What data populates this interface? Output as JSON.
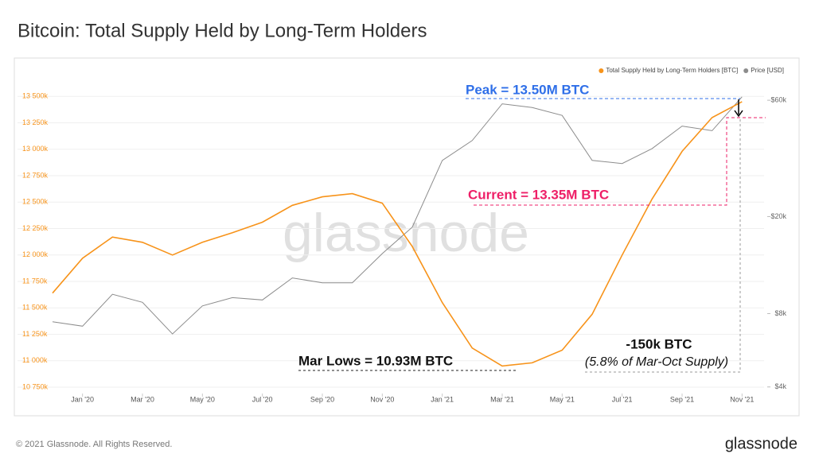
{
  "chart_data": {
    "type": "line",
    "title": "Bitcoin: Total Supply Held by Long-Term Holders",
    "footer": "© 2021 Glassnode. All Rights Reserved.",
    "brand": "glassnode",
    "watermark": "glassnode",
    "x": [
      "2019-12",
      "2020-01",
      "2020-02",
      "2020-03",
      "2020-04",
      "2020-05",
      "2020-06",
      "2020-07",
      "2020-08",
      "2020-09",
      "2020-10",
      "2020-11",
      "2020-12",
      "2021-01",
      "2021-02",
      "2021-03",
      "2021-04",
      "2021-05",
      "2021-06",
      "2021-07",
      "2021-08",
      "2021-09",
      "2021-10",
      "2021-11"
    ],
    "xlim": [
      "2019-12",
      "2021-12"
    ],
    "xticks": [
      {
        "value": "2020-01",
        "label": "Jan '20"
      },
      {
        "value": "2020-03",
        "label": "Mar '20"
      },
      {
        "value": "2020-05",
        "label": "May '20"
      },
      {
        "value": "2020-07",
        "label": "Jul '20"
      },
      {
        "value": "2020-09",
        "label": "Sep '20"
      },
      {
        "value": "2020-11",
        "label": "Nov '20"
      },
      {
        "value": "2021-01",
        "label": "Jan '21"
      },
      {
        "value": "2021-03",
        "label": "Mar '21"
      },
      {
        "value": "2021-05",
        "label": "May '21"
      },
      {
        "value": "2021-07",
        "label": "Jul '21"
      },
      {
        "value": "2021-09",
        "label": "Sep '21"
      },
      {
        "value": "2021-11",
        "label": "Nov '21"
      }
    ],
    "ylim": [
      10690000,
      13660000
    ],
    "yticks": [
      {
        "value": 10750000,
        "label": "10 750k"
      },
      {
        "value": 11000000,
        "label": "11 000k"
      },
      {
        "value": 11250000,
        "label": "11 250k"
      },
      {
        "value": 11500000,
        "label": "11 500k"
      },
      {
        "value": 11750000,
        "label": "11 750k"
      },
      {
        "value": 12000000,
        "label": "12 000k"
      },
      {
        "value": 12250000,
        "label": "12 250k"
      },
      {
        "value": 12500000,
        "label": "12 500k"
      },
      {
        "value": 12750000,
        "label": "12 750k"
      },
      {
        "value": 13000000,
        "label": "13 000k"
      },
      {
        "value": 13250000,
        "label": "13 250k"
      },
      {
        "value": 13500000,
        "label": "13 500k"
      }
    ],
    "y2lim": [
      3760,
      73000
    ],
    "y2scale": "log",
    "y2ticks": [
      {
        "value": 4000,
        "label": "$4k"
      },
      {
        "value": 8000,
        "label": "$8k"
      },
      {
        "value": 20000,
        "label": "$20k"
      },
      {
        "value": 60000,
        "label": "$60k"
      }
    ],
    "grid": true,
    "legend": "top-right",
    "series": [
      {
        "name": "Total Supply Held by Long-Term Holders [BTC]",
        "color": "#f7931a",
        "values": [
          11640000,
          11970000,
          12170000,
          12120000,
          12000000,
          12120000,
          12210000,
          12310000,
          12470000,
          12550000,
          12580000,
          12490000,
          12080000,
          11550000,
          11120000,
          10950000,
          10980000,
          11100000,
          11440000,
          12000000,
          12530000,
          12980000,
          13300000,
          13450000
        ]
      },
      {
        "name": "Price [USD]",
        "color": "#8c8c8c",
        "axis": "y2",
        "values": [
          7400,
          7100,
          9600,
          8900,
          6600,
          8600,
          9300,
          9100,
          11200,
          10700,
          10700,
          14100,
          18100,
          34000,
          41000,
          58000,
          56000,
          52000,
          34000,
          33000,
          38000,
          47000,
          45000,
          62000
        ]
      }
    ],
    "annotations": [
      "Peak = 13.50M BTC",
      "Current = 13.35M BTC",
      "Mar Lows = 10.93M BTC",
      "-150k BTC",
      "(5.8% of Mar-Oct Supply)"
    ]
  }
}
